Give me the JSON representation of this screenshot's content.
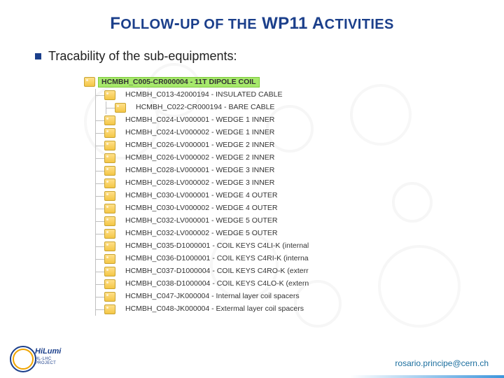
{
  "title_html": "F<span style='font-size:20px'>OLLOW</span>-<span style='font-size:20px'>UP OF THE</span> WP11 A<span style='font-size:20px'>CTIVITIES</span>",
  "title_plain": "FOLLOW-UP OF THE WP11 ACTIVITIES",
  "bullet_text": "Tracability of the sub-equipments:",
  "footer_email": "rosario.principe@cern.ch",
  "logo": {
    "line1": "HiLumi",
    "line2": "HL-LHC PROJECT"
  },
  "colors": {
    "title": "#1b3f8b",
    "bullet_marker": "#1b3f8b",
    "root_bg": "#a6e86b",
    "root_border": "#7ecb3a",
    "tree_line": "#bfbfbf",
    "icon_top": "#ffe08a",
    "icon_bottom": "#f4c646",
    "icon_border": "#c8a330",
    "footer": "#1b6e9e",
    "accent": "#3c96dc"
  },
  "tree": {
    "root": {
      "label": "HCMBH_C005-CR000004 - 11T DIPOLE COIL"
    },
    "children": [
      {
        "label": "HCMBH_C013-42000194 - INSULATED CABLE",
        "children": [
          {
            "label": "HCMBH_C022-CR000194 - BARE CABLE"
          }
        ]
      },
      {
        "label": "HCMBH_C024-LV000001 - WEDGE 1 INNER"
      },
      {
        "label": "HCMBH_C024-LV000002 - WEDGE 1 INNER"
      },
      {
        "label": "HCMBH_C026-LV000001 - WEDGE 2 INNER"
      },
      {
        "label": "HCMBH_C026-LV000002 - WEDGE 2 INNER"
      },
      {
        "label": "HCMBH_C028-LV000001 - WEDGE 3 INNER"
      },
      {
        "label": "HCMBH_C028-LV000002 - WEDGE 3 INNER"
      },
      {
        "label": "HCMBH_C030-LV000001 - WEDGE 4 OUTER"
      },
      {
        "label": "HCMBH_C030-LV000002 - WEDGE 4 OUTER"
      },
      {
        "label": "HCMBH_C032-LV000001 - WEDGE 5 OUTER"
      },
      {
        "label": "HCMBH_C032-LV000002 - WEDGE 5 OUTER"
      },
      {
        "label": "HCMBH_C035-D1000001 - COIL KEYS C4LI-K (internal"
      },
      {
        "label": "HCMBH_C036-D1000001 - COIL KEYS C4RI-K (interna"
      },
      {
        "label": "HCMBH_C037-D1000004 - COIL KEYS C4RO-K (exterr"
      },
      {
        "label": "HCMBH_C038-D1000004 - COIL KEYS C4LO-K (extern"
      },
      {
        "label": "HCMBH_C047-JK000004 - Internal layer coil spacers"
      },
      {
        "label": "HCMBH_C048-JK000004 - Extermal layer coil spacers"
      }
    ]
  }
}
